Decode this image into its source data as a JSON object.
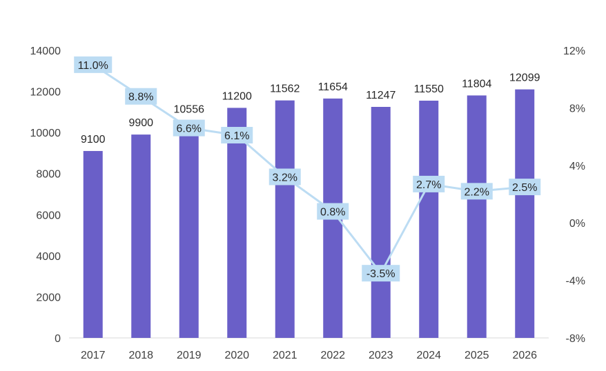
{
  "chart_data": {
    "type": "bar",
    "categories": [
      "2017",
      "2018",
      "2019",
      "2020",
      "2021",
      "2022",
      "2023",
      "2024",
      "2025",
      "2026"
    ],
    "series": [
      {
        "type": "bar",
        "axis": "left",
        "values": [
          9100,
          9900,
          10556,
          11200,
          11562,
          11654,
          11247,
          11550,
          11804,
          12099
        ],
        "labels": [
          "9100",
          "9900",
          "10556",
          "11200",
          "11562",
          "11654",
          "11247",
          "11550",
          "11804",
          "12099"
        ]
      },
      {
        "type": "line",
        "axis": "right",
        "values": [
          11.0,
          8.8,
          6.6,
          6.1,
          3.2,
          0.8,
          -3.5,
          2.7,
          2.2,
          2.5
        ],
        "labels": [
          "11.0%",
          "8.8%",
          "6.6%",
          "6.1%",
          "3.2%",
          "0.8%",
          "-3.5%",
          "2.7%",
          "2.2%",
          "2.5%"
        ]
      }
    ],
    "ylim_left": [
      0,
      14000
    ],
    "yticks_left": [
      "0",
      "2000",
      "4000",
      "6000",
      "8000",
      "10000",
      "12000",
      "14000"
    ],
    "ylim_right": [
      -8,
      12
    ],
    "yticks_right": [
      "-8%",
      "-4%",
      "0%",
      "4%",
      "8%",
      "12%"
    ],
    "grid": false,
    "colors": {
      "bar": "#6a5fc8",
      "line": "#bcdcf3",
      "label_bg": "#bcdcf3"
    }
  }
}
